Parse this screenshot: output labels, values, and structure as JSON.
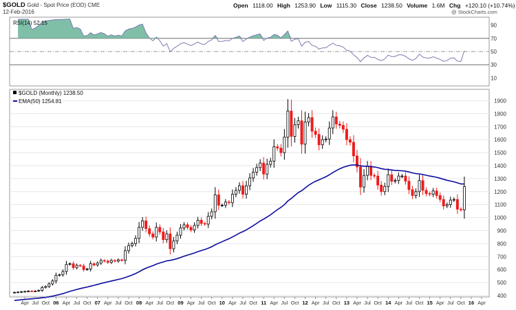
{
  "header": {
    "ticker": "$GOLD",
    "description": "Gold - Spot Price (EOD) CME",
    "date": "12-Feb-2016",
    "open_label": "Open",
    "open": "1118.00",
    "high_label": "High",
    "high": "1253.90",
    "low_label": "Low",
    "low": "1115.30",
    "close_label": "Close",
    "close": "1238.50",
    "volume_label": "Volume",
    "volume": "1.6M",
    "chg_label": "Chg",
    "chg": "+120.10 (+10.74%)",
    "watermark": "@ StockCharts.com"
  },
  "rsi_panel": {
    "label": "RSI(14) 52.15",
    "ylim": [
      0,
      100
    ],
    "ticks": [
      10,
      30,
      50,
      70,
      90
    ],
    "overbought": 70,
    "oversold": 30,
    "midline": 50
  },
  "price_panel": {
    "legend_price": "$GOLD (Monthly) 1238.50",
    "legend_ema": "EMA(50) 1254.81",
    "ylim": [
      400,
      1950
    ],
    "ticks": [
      400,
      500,
      600,
      700,
      800,
      900,
      1000,
      1100,
      1200,
      1300,
      1400,
      1500,
      1600,
      1700,
      1800,
      1900
    ]
  },
  "colors": {
    "up": "#000000",
    "down": "#ee1c1c",
    "ema": "#0b0b9c",
    "rsi_line": "#7b7bb0",
    "rsi_fill": "#7fbfa8",
    "grid": "#e6e6ee"
  },
  "chart_data": {
    "type": "candlestick",
    "interval": "monthly",
    "start": "2005-01",
    "ohlc_close_by_month": [
      425,
      427,
      430,
      432,
      435,
      433,
      435,
      440,
      462,
      470,
      490,
      512,
      555,
      560,
      585,
      640,
      645,
      615,
      633,
      628,
      600,
      605,
      645,
      635,
      650,
      670,
      665,
      655,
      670,
      665,
      675,
      672,
      745,
      785,
      800,
      840,
      925,
      975,
      915,
      875,
      850,
      925,
      890,
      830,
      875,
      760,
      820,
      865,
      920,
      945,
      925,
      905,
      940,
      980,
      955,
      950,
      1010,
      1045,
      1175,
      1095,
      1095,
      1120,
      1115,
      1180,
      1210,
      1245,
      1180,
      1245,
      1305,
      1350,
      1385,
      1420,
      1335,
      1410,
      1435,
      1545,
      1535,
      1500,
      1620,
      1820,
      1625,
      1715,
      1745,
      1565,
      1735,
      1770,
      1665,
      1640,
      1560,
      1600,
      1605,
      1690,
      1775,
      1720,
      1710,
      1680,
      1600,
      1580,
      1475,
      1390,
      1235,
      1325,
      1395,
      1325,
      1320,
      1250,
      1200,
      1240,
      1330,
      1280,
      1285,
      1320,
      1320,
      1280,
      1215,
      1170,
      1200,
      1285,
      1210,
      1185,
      1180,
      1205,
      1170,
      1140,
      1090,
      1100,
      1135,
      1140,
      1065,
      1060,
      1238
    ],
    "ema": {
      "name": "EMA(50)",
      "last": 1254.81
    },
    "rsi": {
      "name": "RSI(14)",
      "last": 52.15
    },
    "x_tick_labels": [
      "Apr",
      "Jul",
      "Oct",
      "06",
      "Apr",
      "Jul",
      "Oct",
      "07",
      "Apr",
      "Jul",
      "Oct",
      "08",
      "Apr",
      "Jul",
      "Oct",
      "09",
      "Apr",
      "Jul",
      "Oct",
      "10",
      "Apr",
      "Jul",
      "Oct",
      "11",
      "Apr",
      "Jul",
      "Oct",
      "12",
      "Apr",
      "Jul",
      "Oct",
      "13",
      "Apr",
      "Jul",
      "Oct",
      "14",
      "Apr",
      "Jul",
      "Oct",
      "15",
      "Apr",
      "Jul",
      "Oct",
      "16",
      "Apr"
    ],
    "xlabel": "",
    "ylabel": ""
  }
}
